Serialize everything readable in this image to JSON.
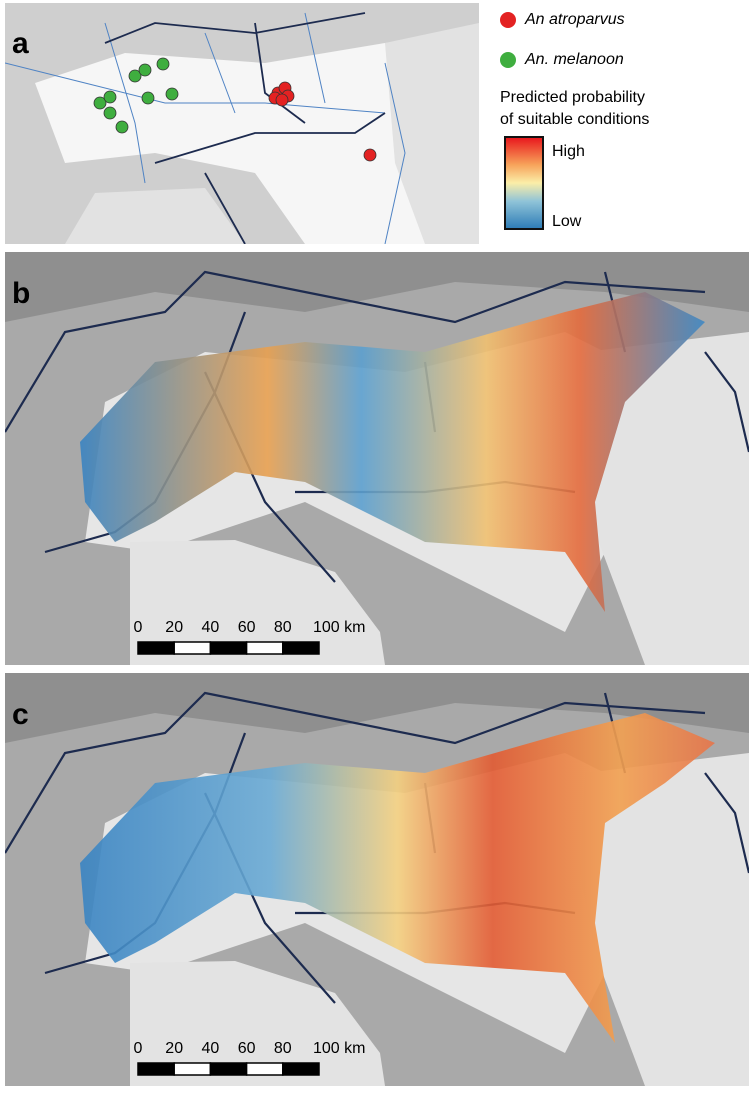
{
  "panels": [
    {
      "label": "a"
    },
    {
      "label": "b",
      "scale_bar": [
        "0",
        "20",
        "40",
        "60",
        "80",
        "100 km"
      ]
    },
    {
      "label": "c",
      "scale_bar": [
        "0",
        "20",
        "40",
        "60",
        "80",
        "100 km"
      ]
    }
  ],
  "legend": {
    "species": [
      {
        "name": "An atroparvus",
        "color": "#e32222"
      },
      {
        "name": "An. melanoon",
        "color": "#3fae3f"
      }
    ],
    "colorbar": {
      "title": [
        "Predicted probability",
        "of suitable conditions"
      ],
      "high": "High",
      "low": "Low"
    }
  }
}
